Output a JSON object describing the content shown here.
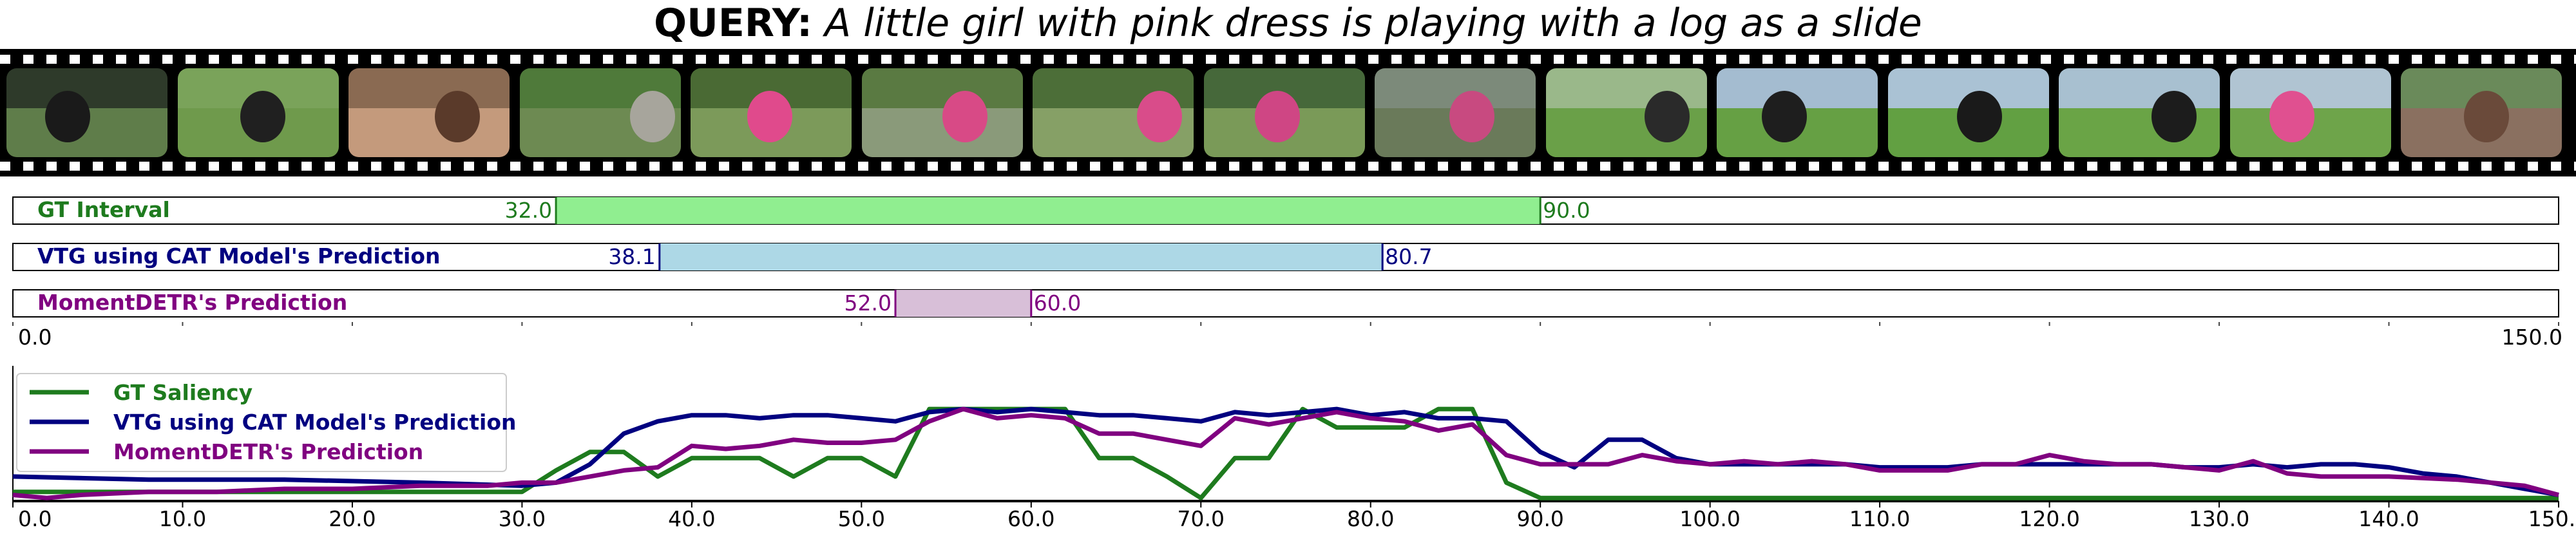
{
  "query": {
    "label": "QUERY:",
    "text": "A little girl with pink dress is playing with a log as a slide"
  },
  "colors": {
    "gt": "#1e7b1e",
    "gt_fill": "#90ee90",
    "cat": "#000080",
    "cat_fill": "#add8e6",
    "detr": "#800080",
    "detr_fill": "#d8bfd8"
  },
  "chart_data": [
    {
      "type": "interval",
      "xlim": [
        0,
        150
      ],
      "xmin_label": "0.0",
      "xmax_label": "150.0",
      "rows": [
        {
          "name": "GT Interval",
          "start": 32.0,
          "end": 90.0,
          "start_label": "32.0",
          "end_label": "90.0",
          "color": "#1e7b1e",
          "fill": "#90ee90"
        },
        {
          "name": "VTG using CAT Model's Prediction",
          "start": 38.1,
          "end": 80.7,
          "start_label": "38.1",
          "end_label": "80.7",
          "color": "#000080",
          "fill": "#add8e6"
        },
        {
          "name": "MomentDETR's Prediction",
          "start": 52.0,
          "end": 60.0,
          "start_label": "52.0",
          "end_label": "60.0",
          "color": "#800080",
          "fill": "#d8bfd8"
        }
      ]
    },
    {
      "type": "line",
      "xlim": [
        0,
        150
      ],
      "ylim": [
        0,
        4.2
      ],
      "xticks": [
        "0.0",
        "10.0",
        "20.0",
        "30.0",
        "40.0",
        "50.0",
        "60.0",
        "70.0",
        "80.0",
        "90.0",
        "100.0",
        "110.0",
        "120.0",
        "130.0",
        "140.0",
        "150.0"
      ],
      "legend_position": "top-left",
      "series": [
        {
          "name": "GT Saliency",
          "color": "#1e7b1e",
          "x": [
            0,
            30,
            32,
            34,
            36,
            38,
            40,
            42,
            44,
            46,
            48,
            50,
            52,
            54,
            56,
            58,
            60,
            62,
            64,
            66,
            68,
            70,
            72,
            74,
            76,
            78,
            80,
            82,
            84,
            86,
            88,
            90,
            150
          ],
          "y": [
            0.3,
            0.3,
            1.0,
            1.6,
            1.6,
            0.8,
            1.4,
            1.4,
            1.4,
            0.8,
            1.4,
            1.4,
            0.8,
            3.0,
            3.0,
            3.0,
            3.0,
            3.0,
            1.4,
            1.4,
            0.8,
            0.1,
            1.4,
            1.4,
            3.0,
            2.4,
            2.4,
            2.4,
            3.0,
            3.0,
            0.6,
            0.1,
            0.1
          ]
        },
        {
          "name": "VTG using CAT Model's Prediction",
          "color": "#000080",
          "x": [
            0,
            8,
            16,
            24,
            30,
            32,
            34,
            36,
            38,
            40,
            42,
            44,
            46,
            48,
            50,
            52,
            54,
            56,
            58,
            60,
            62,
            64,
            66,
            68,
            70,
            72,
            74,
            76,
            78,
            80,
            82,
            84,
            86,
            88,
            90,
            92,
            94,
            96,
            98,
            100,
            102,
            104,
            106,
            108,
            110,
            112,
            114,
            116,
            118,
            120,
            122,
            124,
            126,
            128,
            130,
            132,
            134,
            136,
            138,
            140,
            142,
            144,
            146,
            148,
            150
          ],
          "y": [
            0.8,
            0.7,
            0.7,
            0.6,
            0.5,
            0.6,
            1.2,
            2.2,
            2.6,
            2.8,
            2.8,
            2.7,
            2.8,
            2.8,
            2.7,
            2.6,
            2.9,
            3.0,
            2.9,
            3.0,
            2.9,
            2.8,
            2.8,
            2.7,
            2.6,
            2.9,
            2.8,
            2.9,
            3.0,
            2.8,
            2.9,
            2.7,
            2.7,
            2.6,
            1.6,
            1.1,
            2.0,
            2.0,
            1.4,
            1.2,
            1.2,
            1.2,
            1.2,
            1.2,
            1.1,
            1.1,
            1.1,
            1.2,
            1.2,
            1.2,
            1.2,
            1.2,
            1.2,
            1.1,
            1.1,
            1.2,
            1.1,
            1.2,
            1.2,
            1.1,
            0.9,
            0.8,
            0.6,
            0.4,
            0.2
          ]
        },
        {
          "name": "MomentDETR's Prediction",
          "color": "#800080",
          "x": [
            0,
            2,
            4,
            8,
            12,
            16,
            20,
            24,
            28,
            30,
            32,
            34,
            36,
            38,
            40,
            42,
            44,
            46,
            48,
            50,
            52,
            54,
            56,
            58,
            60,
            62,
            64,
            66,
            68,
            70,
            72,
            74,
            76,
            78,
            80,
            82,
            84,
            86,
            88,
            90,
            92,
            94,
            96,
            98,
            100,
            102,
            104,
            106,
            108,
            110,
            112,
            114,
            116,
            118,
            120,
            122,
            124,
            126,
            128,
            130,
            132,
            134,
            136,
            140,
            144,
            146,
            148,
            150
          ],
          "y": [
            0.2,
            0.1,
            0.2,
            0.3,
            0.3,
            0.4,
            0.4,
            0.5,
            0.5,
            0.6,
            0.6,
            0.8,
            1.0,
            1.1,
            1.8,
            1.7,
            1.8,
            2.0,
            1.9,
            1.9,
            2.0,
            2.6,
            3.0,
            2.7,
            2.8,
            2.7,
            2.2,
            2.2,
            2.0,
            1.8,
            2.7,
            2.5,
            2.7,
            2.9,
            2.7,
            2.6,
            2.3,
            2.5,
            1.5,
            1.2,
            1.2,
            1.2,
            1.5,
            1.3,
            1.2,
            1.3,
            1.2,
            1.3,
            1.2,
            1.0,
            1.0,
            1.0,
            1.2,
            1.2,
            1.5,
            1.3,
            1.2,
            1.2,
            1.1,
            1.0,
            1.3,
            0.9,
            0.8,
            0.8,
            0.7,
            0.6,
            0.5,
            0.2
          ]
        }
      ]
    }
  ],
  "filmstrip": {
    "frames": [
      {
        "name": "frame-1",
        "sky": "#2e3a2a",
        "ground": "#5f7d4a",
        "subject": "#1a1a1a"
      },
      {
        "name": "frame-2",
        "sky": "#7aa35a",
        "ground": "#6f9a4c",
        "subject": "#202020"
      },
      {
        "name": "frame-3",
        "sky": "#8a6a52",
        "ground": "#c49a7c",
        "subject": "#5a3a2a"
      },
      {
        "name": "frame-4",
        "sky": "#4f7a3a",
        "ground": "#6d8a52",
        "subject": "#a7a59c"
      },
      {
        "name": "frame-5",
        "sky": "#4a6a34",
        "ground": "#7c9a5a",
        "subject": "#e04a8c"
      },
      {
        "name": "frame-6",
        "sky": "#5a7a42",
        "ground": "#8a9a7a",
        "subject": "#d84a86"
      },
      {
        "name": "frame-7",
        "sky": "#4c6e38",
        "ground": "#86a066",
        "subject": "#d94c8a"
      },
      {
        "name": "frame-8",
        "sky": "#46683a",
        "ground": "#7a9a58",
        "subject": "#cf4684"
      },
      {
        "name": "frame-9",
        "sky": "#7c8a7a",
        "ground": "#6a7a5a",
        "subject": "#c84a80"
      },
      {
        "name": "frame-10",
        "sky": "#9ab88a",
        "ground": "#6aa048",
        "subject": "#2a2a2a"
      },
      {
        "name": "frame-11",
        "sky": "#a4bcd0",
        "ground": "#66a044",
        "subject": "#1e1e1e"
      },
      {
        "name": "frame-12",
        "sky": "#aac2d4",
        "ground": "#62a042",
        "subject": "#1a1a1a"
      },
      {
        "name": "frame-13",
        "sky": "#a8c0d0",
        "ground": "#6aa446",
        "subject": "#1c1c1c"
      },
      {
        "name": "frame-14",
        "sky": "#b0c4d2",
        "ground": "#6ea44a",
        "subject": "#e05090"
      },
      {
        "name": "frame-15",
        "sky": "#6a8a5a",
        "ground": "#8a7060",
        "subject": "#6a4a3a"
      }
    ]
  }
}
